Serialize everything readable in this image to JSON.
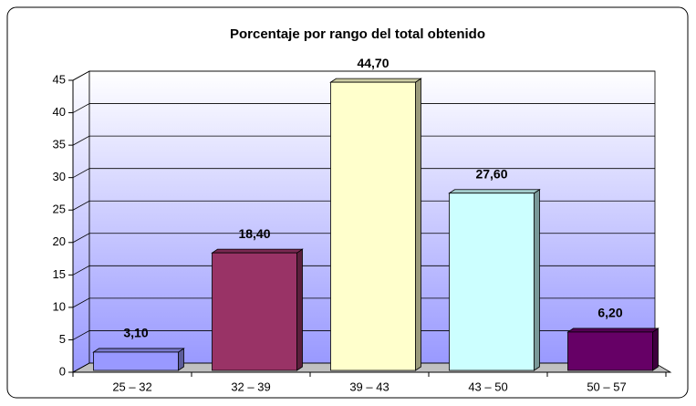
{
  "chart_data": {
    "type": "bar",
    "title": "Porcentaje por rango del total obtenido",
    "categories": [
      "25 – 32",
      "32 – 39",
      "39 – 43",
      "43 – 50",
      "50 – 57"
    ],
    "values": [
      3.1,
      18.4,
      44.7,
      27.6,
      6.2
    ],
    "value_labels": [
      "3,10",
      "18,40",
      "44,70",
      "27,60",
      "6,20"
    ],
    "colors": [
      "#9999ff",
      "#993366",
      "#ffffcc",
      "#ccffff",
      "#660066"
    ],
    "ylim": [
      0,
      45
    ],
    "yticks": [
      0,
      5,
      10,
      15,
      20,
      25,
      30,
      35,
      40,
      45
    ],
    "grid": true
  }
}
